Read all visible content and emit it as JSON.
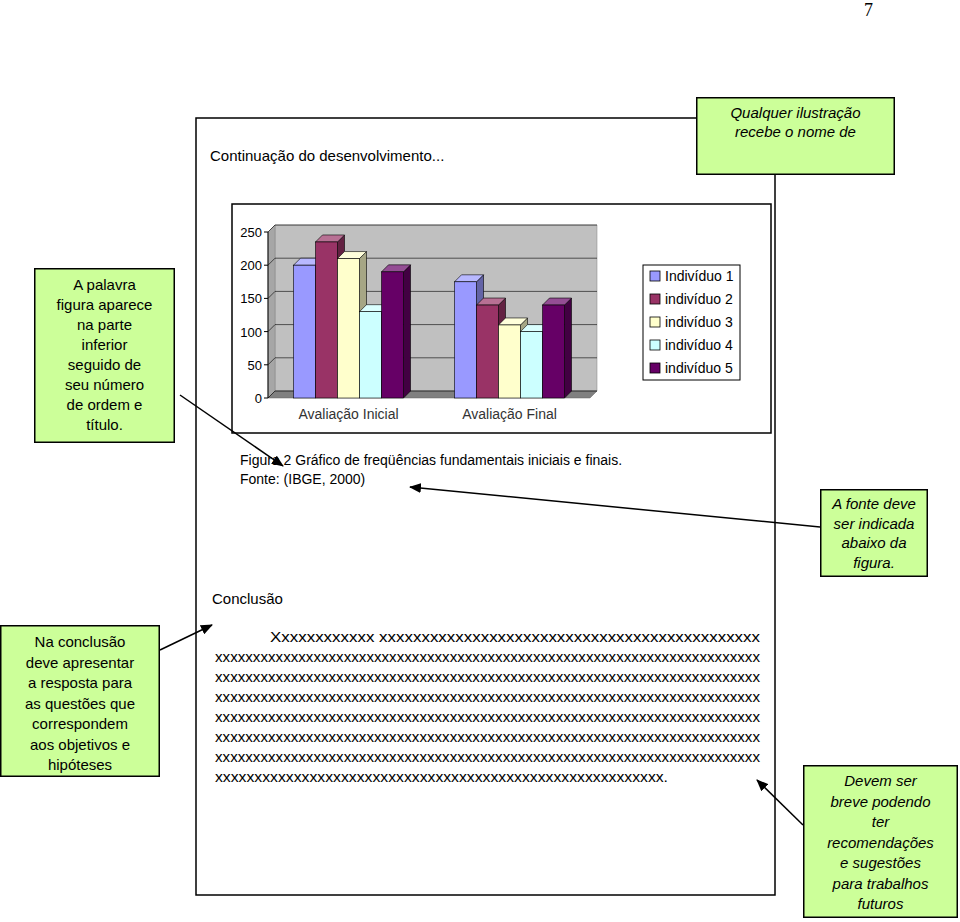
{
  "page_number": "7",
  "page": {
    "continuation": "Continuação do desenvolvimento...",
    "figure_caption": "Figura 2 Gráfico de freqüências fundamentais iniciais e finais.",
    "figure_source": "Fonte: (IBGE, 2000)",
    "conclusion_heading": "Conclusão",
    "conclusion_lines": [
      "Xxxxxxxxxxxx xxxxxxxxxxxxxxxxxxxxxxxxxxxxxxxxxxxxxxxxxxxxx",
      "xxxxxxxxxxxxxxxxxxxxxxxxxxxxxxxxxxxxxxxxxxxxxxxxxxxxxxxxxxxxxxxxxxxxxxxx",
      "xxxxxxxxxxxxxxxxxxxxxxxxxxxxxxxxxxxxxxxxxxxxxxxxxxxxxxxxxxxxxxxxxxxxxxxx",
      "xxxxxxxxxxxxxxxxxxxxxxxxxxxxxxxxxxxxxxxxxxxxxxxxxxxxxxxxxxxxxxxxxxxxxxxx",
      "xxxxxxxxxxxxxxxxxxxxxxxxxxxxxxxxxxxxxxxxxxxxxxxxxxxxxxxxxxxxxxxxxxxxxxxx",
      "xxxxxxxxxxxxxxxxxxxxxxxxxxxxxxxxxxxxxxxxxxxxxxxxxxxxxxxxxxxxxxxxxxxxxxxx",
      "xxxxxxxxxxxxxxxxxxxxxxxxxxxxxxxxxxxxxxxxxxxxxxxxxxxxxxxxxxxxxxxxxxxxxxxx",
      "xxxxxxxxxxxxxxxxxxxxxxxxxxxxxxxxxxxxxxxxxxxxxxxxxxxxxxxxx."
    ]
  },
  "annotations": [
    {
      "lines": [
        "Qualquer ilustração",
        "recebe o nome de"
      ]
    },
    {
      "lines": [
        "A palavra",
        "figura aparece",
        "na parte",
        "inferior",
        "seguido de",
        "seu número",
        "de ordem e",
        "título."
      ]
    },
    {
      "lines": [
        "A fonte deve",
        "ser indicada",
        "abaixo da",
        "figura."
      ]
    },
    {
      "lines": [
        "Na conclusão",
        "deve apresentar",
        "a resposta para",
        "as questões que",
        "correspondem",
        "aos objetivos e",
        "hipóteses"
      ]
    },
    {
      "lines": [
        "Devem ser",
        "breve podendo",
        "ter",
        "recomendações",
        "e sugestões",
        "para trabalhos",
        "futuros"
      ]
    }
  ],
  "chart_data": {
    "type": "bar",
    "categories": [
      "Avaliação Inicial",
      "Avaliação Final"
    ],
    "series": [
      {
        "name": "Indivíduo 1",
        "color": "#9999ff",
        "values": [
          200,
          175
        ]
      },
      {
        "name": "indivíduo 2",
        "color": "#993366",
        "values": [
          235,
          140
        ]
      },
      {
        "name": "indivíduo 3",
        "color": "#ffffcc",
        "values": [
          210,
          110
        ]
      },
      {
        "name": "indivíduo 4",
        "color": "#ccffff",
        "values": [
          130,
          100
        ]
      },
      {
        "name": "indivíduo 5",
        "color": "#660066",
        "values": [
          190,
          140
        ]
      }
    ],
    "ylim": [
      0,
      250
    ],
    "yticks": [
      0,
      50,
      100,
      150,
      200,
      250
    ],
    "grid": true,
    "legend": "right"
  }
}
